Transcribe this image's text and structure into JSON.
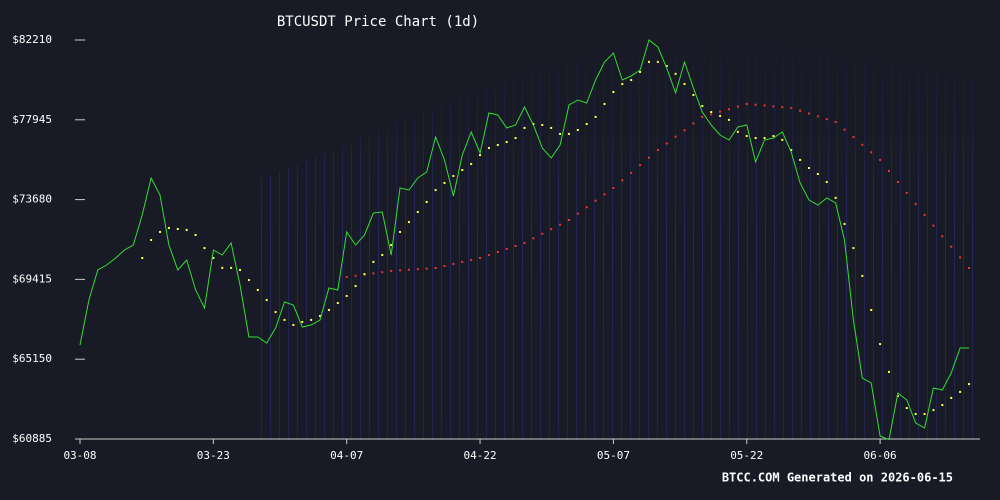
{
  "chart_data": {
    "type": "line",
    "title": "BTCUSDT Price Chart (1d)",
    "footer": "BTCC.COM Generated on 2026-06-15",
    "categories": [
      "03-08",
      null,
      null,
      null,
      null,
      null,
      null,
      null,
      null,
      null,
      null,
      null,
      null,
      null,
      null,
      "03-23",
      null,
      null,
      null,
      null,
      null,
      null,
      null,
      null,
      null,
      null,
      null,
      null,
      null,
      null,
      "04-07",
      null,
      null,
      null,
      null,
      null,
      null,
      null,
      null,
      null,
      null,
      null,
      null,
      null,
      null,
      "04-22",
      null,
      null,
      null,
      null,
      null,
      null,
      null,
      null,
      null,
      null,
      null,
      null,
      null,
      null,
      "05-07",
      null,
      null,
      null,
      null,
      null,
      null,
      null,
      null,
      null,
      null,
      null,
      null,
      null,
      null,
      "05-22",
      null,
      null,
      null,
      null,
      null,
      null,
      null,
      null,
      null,
      null,
      null,
      null,
      null,
      null,
      "06-06",
      null,
      null,
      null,
      null,
      null,
      null,
      null,
      null,
      null,
      null
    ],
    "ylim": [
      60885,
      82210
    ],
    "yticks": [
      {
        "value": 60885,
        "label": "$60885"
      },
      {
        "value": 65150,
        "label": "$65150"
      },
      {
        "value": 69415,
        "label": "$69415"
      },
      {
        "value": 73680,
        "label": "$73680"
      },
      {
        "value": 77945,
        "label": "$77945"
      },
      {
        "value": 82210,
        "label": "$82210"
      }
    ],
    "series": [
      {
        "color": "#33dd33",
        "style": "line",
        "values": [
          65909,
          68315,
          69918,
          70185,
          70559,
          70987,
          71254,
          72858,
          74835,
          73927,
          71254,
          69918,
          70453,
          68849,
          67887,
          70987,
          70720,
          71361,
          69116,
          66337,
          66337,
          66016,
          66818,
          68208,
          68047,
          66871,
          66978,
          67246,
          68956,
          68849,
          71949,
          71254,
          71789,
          72965,
          73018,
          70720,
          74301,
          74194,
          74835,
          75156,
          77027,
          75798,
          73873,
          76065,
          77294,
          76172,
          78310,
          78203,
          77508,
          77668,
          78630,
          77668,
          76439,
          75904,
          76599,
          78737,
          79005,
          78844,
          80074,
          81036,
          81517,
          80074,
          80287,
          80608,
          82210,
          81837,
          80715,
          79379,
          81036,
          79646,
          78363,
          77668,
          77134,
          76867,
          77561,
          77668,
          75691,
          76867,
          76973,
          77294,
          76225,
          74568,
          73660,
          73392,
          73766,
          73499,
          71522,
          67246,
          64145,
          63878,
          61045,
          60850,
          63344,
          62970,
          61740,
          61473,
          63611,
          63504,
          64413,
          65749,
          65749
        ]
      },
      {
        "color": "#ffff44",
        "style": "dots",
        "values": [
          null,
          null,
          null,
          null,
          null,
          null,
          null,
          70560,
          71520,
          71950,
          72160,
          72110,
          72060,
          71790,
          71090,
          70560,
          70030,
          70030,
          69920,
          69380,
          68850,
          68310,
          67670,
          67250,
          66980,
          67140,
          67250,
          67460,
          67780,
          68150,
          68530,
          69060,
          69700,
          70350,
          70720,
          71250,
          71950,
          72480,
          73020,
          73550,
          74190,
          74570,
          74940,
          75260,
          75580,
          76060,
          76440,
          76600,
          76760,
          76970,
          77510,
          77720,
          77670,
          77510,
          77190,
          77190,
          77400,
          77720,
          78100,
          78790,
          79430,
          79860,
          80070,
          80500,
          81040,
          81040,
          80820,
          80400,
          79860,
          79270,
          78680,
          78360,
          78150,
          77940,
          77300,
          77080,
          76970,
          76970,
          77080,
          76870,
          76330,
          75800,
          75370,
          75050,
          74620,
          73770,
          72380,
          71090,
          69600,
          67780,
          65960,
          64470,
          63180,
          62540,
          62220,
          62220,
          62430,
          62700,
          63080,
          63400,
          63820
        ]
      },
      {
        "color": "#ee3333",
        "style": "dots",
        "values": [
          null,
          null,
          null,
          null,
          null,
          null,
          null,
          null,
          null,
          null,
          null,
          null,
          null,
          null,
          null,
          null,
          null,
          null,
          null,
          null,
          null,
          null,
          null,
          null,
          null,
          null,
          null,
          null,
          null,
          null,
          69540,
          69605,
          69670,
          69735,
          69800,
          69865,
          69900,
          69930,
          69960,
          69990,
          70025,
          70130,
          70240,
          70350,
          70450,
          70560,
          70720,
          70880,
          71040,
          71200,
          71360,
          71610,
          71850,
          72100,
          72340,
          72590,
          72930,
          73270,
          73620,
          73960,
          74300,
          74710,
          75110,
          75520,
          75920,
          76330,
          76680,
          77040,
          77390,
          77750,
          78100,
          78240,
          78380,
          78510,
          78650,
          78790,
          78750,
          78710,
          78660,
          78620,
          78580,
          78430,
          78280,
          78130,
          77980,
          77830,
          77420,
          77020,
          76610,
          76210,
          75800,
          75210,
          74620,
          74040,
          73450,
          72860,
          72290,
          71720,
          71160,
          70590,
          70025
        ]
      }
    ]
  }
}
